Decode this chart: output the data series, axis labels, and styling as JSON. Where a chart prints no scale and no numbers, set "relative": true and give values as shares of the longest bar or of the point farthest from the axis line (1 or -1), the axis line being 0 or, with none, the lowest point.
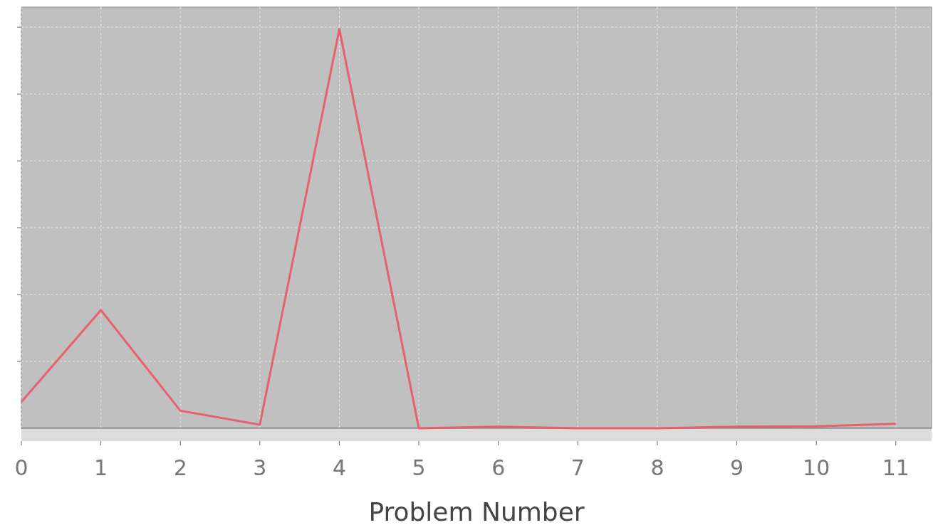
{
  "chart_data": {
    "type": "line",
    "xlabel": "Problem Number",
    "relative": true,
    "x": [
      0,
      1,
      2,
      3,
      4,
      5,
      6,
      7,
      8,
      9,
      10,
      11
    ],
    "series": [
      {
        "color": "#e8606e",
        "values": [
          0.066,
          0.296,
          0.044,
          0.009,
          1,
          0,
          0.004,
          0,
          0,
          0.004,
          0.005,
          0.011
        ]
      }
    ],
    "xlim": [
      0,
      11.45
    ],
    "xticks": [
      0,
      1,
      2,
      3,
      4,
      5,
      6,
      7,
      8,
      9,
      10,
      11
    ],
    "grid": true,
    "marker": "none",
    "line_style": "solid"
  }
}
